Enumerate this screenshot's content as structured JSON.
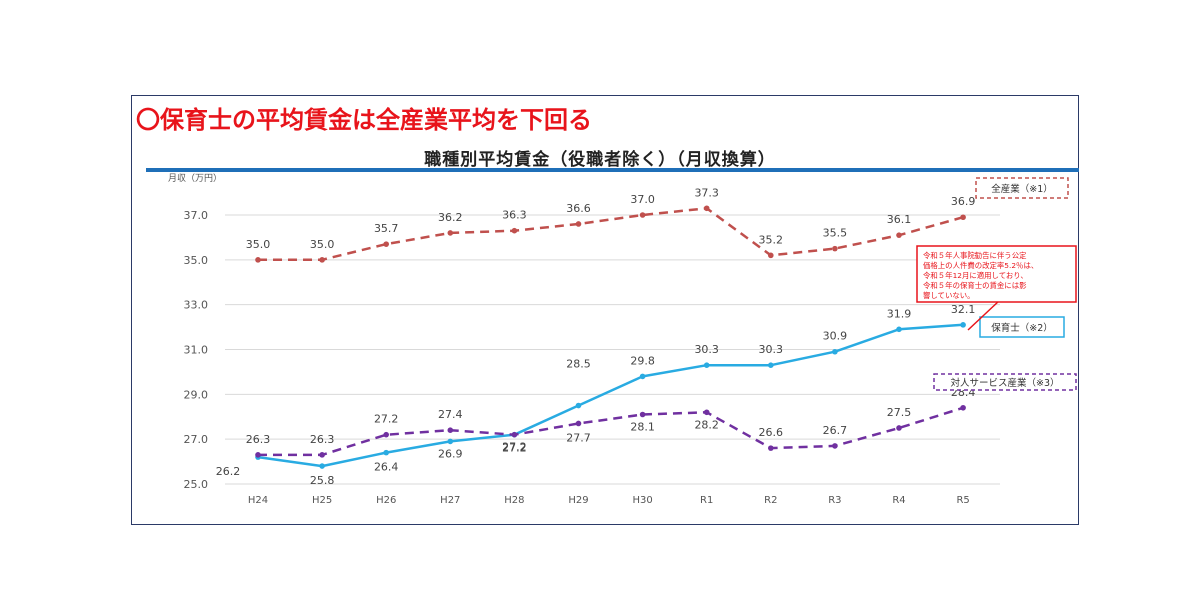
{
  "headline": "〇保育士の平均賃金は全産業平均を下回る",
  "chart_data": {
    "type": "line",
    "title": "職種別平均賃金（役職者除く）（月収換算）",
    "ylabel": "月収（万円）",
    "ylim": [
      25.0,
      37.0
    ],
    "y_ticks": [
      "25.0",
      "27.0",
      "29.0",
      "31.0",
      "33.0",
      "35.0",
      "37.0"
    ],
    "categories": [
      "H24",
      "H25",
      "H26",
      "H27",
      "H28",
      "H29",
      "H30",
      "R1",
      "R2",
      "R3",
      "R4",
      "R5"
    ],
    "grid": true,
    "series": [
      {
        "name": "全産業（※1）",
        "color": "#c0504d",
        "style": "dashed",
        "values": [
          35.0,
          35.0,
          35.7,
          36.2,
          36.3,
          36.6,
          37.0,
          37.3,
          35.2,
          35.5,
          36.1,
          36.9
        ]
      },
      {
        "name": "保育士（※2）",
        "color": "#29abe2",
        "style": "solid",
        "values": [
          26.2,
          25.8,
          26.4,
          26.9,
          27.2,
          28.5,
          29.8,
          30.3,
          30.3,
          30.9,
          31.9,
          32.1
        ]
      },
      {
        "name": "対人サービス産業（※3）",
        "color": "#7030a0",
        "style": "dashed",
        "values": [
          26.3,
          26.3,
          27.2,
          27.4,
          27.2,
          27.7,
          28.1,
          28.2,
          26.6,
          26.7,
          27.5,
          28.4
        ]
      }
    ],
    "annotation": {
      "lines": [
        "令和５年人事院勧告に伴う公定",
        "価格上の人件費の改定率5.2％は、",
        "令和５年12月に適用しており、",
        "令和５年の保育士の賃金には影",
        "響していない。"
      ],
      "color": "#e8141b"
    }
  }
}
